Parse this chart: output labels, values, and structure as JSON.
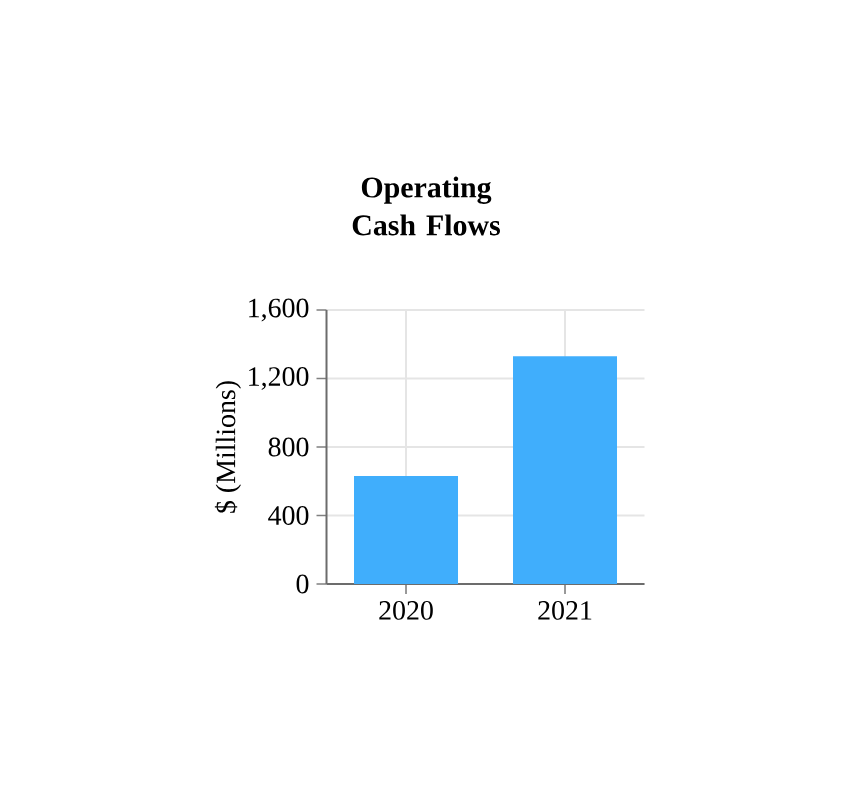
{
  "chart_data": {
    "type": "bar",
    "title": "Operating Cash Flows",
    "ylabel": "$ (Millions)",
    "categories": [
      "2020",
      "2021"
    ],
    "values": [
      630,
      1330
    ],
    "color": "#40aefc",
    "ylim": [
      0,
      1600
    ],
    "yticks": [
      {
        "value": 0,
        "label": "0"
      },
      {
        "value": 400,
        "label": "400"
      },
      {
        "value": 800,
        "label": "800"
      },
      {
        "value": 1200,
        "label": "1,200"
      },
      {
        "value": 1600,
        "label": "1,600"
      }
    ],
    "grid": true
  }
}
